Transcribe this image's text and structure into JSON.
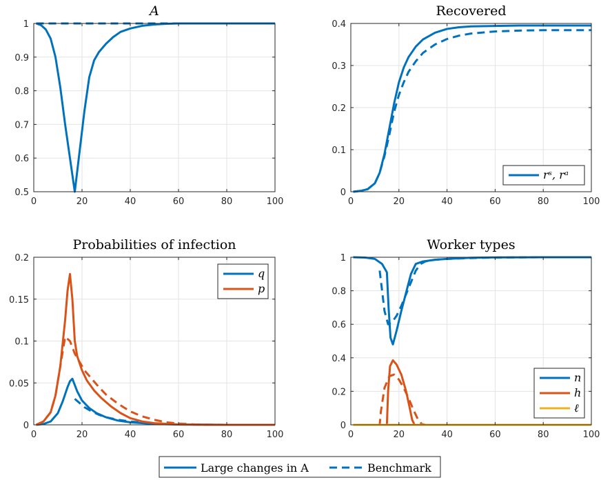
{
  "colors": {
    "blue": "#0072BD",
    "orange": "#D95319",
    "yellow": "#EDB120"
  },
  "bottom_legend": {
    "solid_label": "Large changes in A",
    "dashed_label": "Benchmark"
  },
  "chart_data": [
    {
      "id": "A",
      "type": "line",
      "title": "A",
      "title_italic": true,
      "xlim": [
        0,
        100
      ],
      "ylim": [
        0.5,
        1
      ],
      "xticks": [
        0,
        20,
        40,
        60,
        80,
        100
      ],
      "yticks": [
        0.5,
        0.6,
        0.7,
        0.8,
        0.9,
        1
      ],
      "ytick_labels": [
        "0.5",
        "0.6",
        "0.7",
        "0.8",
        "0.9",
        "1"
      ],
      "legend": [],
      "series": [
        {
          "style": "solid",
          "color": "#0072BD",
          "x": [
            1,
            3,
            5,
            7,
            9,
            11,
            13,
            15,
            17,
            19,
            21,
            23,
            25,
            27,
            30,
            33,
            36,
            40,
            45,
            50,
            55,
            60,
            70,
            80,
            90,
            100
          ],
          "y": [
            1.0,
            0.995,
            0.982,
            0.955,
            0.9,
            0.81,
            0.7,
            0.6,
            0.5,
            0.62,
            0.74,
            0.84,
            0.89,
            0.915,
            0.94,
            0.96,
            0.975,
            0.985,
            0.993,
            0.997,
            0.999,
            1.0,
            1.0,
            1.0,
            1.0,
            1.0
          ]
        },
        {
          "style": "dashed",
          "color": "#0072BD",
          "x": [
            1,
            100
          ],
          "y": [
            1.0,
            1.0
          ]
        }
      ]
    },
    {
      "id": "recovered",
      "type": "line",
      "title": "Recovered",
      "title_italic": false,
      "xlim": [
        0,
        100
      ],
      "ylim": [
        0,
        0.4
      ],
      "xticks": [
        0,
        20,
        40,
        60,
        80,
        100
      ],
      "yticks": [
        0,
        0.1,
        0.2,
        0.3,
        0.4
      ],
      "ytick_labels": [
        "0",
        "0.1",
        "0.2",
        "0.3",
        "0.4"
      ],
      "legend": [
        {
          "label": "rˢ, rᵃ",
          "color": "#0072BD",
          "style": "solid"
        }
      ],
      "legend_position": "bottom-right",
      "series": [
        {
          "style": "solid",
          "color": "#0072BD",
          "x": [
            1,
            4,
            7,
            10,
            12,
            14,
            16,
            18,
            20,
            22,
            24,
            27,
            30,
            35,
            40,
            45,
            50,
            60,
            70,
            80,
            90,
            100
          ],
          "y": [
            0.0,
            0.002,
            0.006,
            0.02,
            0.045,
            0.09,
            0.15,
            0.21,
            0.26,
            0.295,
            0.32,
            0.345,
            0.362,
            0.378,
            0.387,
            0.391,
            0.393,
            0.394,
            0.395,
            0.395,
            0.395,
            0.395
          ]
        },
        {
          "style": "dashed",
          "color": "#0072BD",
          "x": [
            1,
            4,
            7,
            10,
            12,
            14,
            16,
            18,
            20,
            22,
            24,
            27,
            30,
            35,
            40,
            45,
            50,
            60,
            70,
            80,
            90,
            100
          ],
          "y": [
            0.0,
            0.002,
            0.006,
            0.02,
            0.045,
            0.085,
            0.135,
            0.19,
            0.23,
            0.26,
            0.285,
            0.31,
            0.33,
            0.35,
            0.363,
            0.371,
            0.376,
            0.381,
            0.383,
            0.384,
            0.384,
            0.384
          ]
        }
      ]
    },
    {
      "id": "probabilities",
      "type": "line",
      "title": "Probabilities of infection",
      "title_italic": false,
      "xlim": [
        0,
        100
      ],
      "ylim": [
        0,
        0.2
      ],
      "xticks": [
        0,
        20,
        40,
        60,
        80,
        100
      ],
      "yticks": [
        0,
        0.05,
        0.1,
        0.15,
        0.2
      ],
      "ytick_labels": [
        "0",
        "0.05",
        "0.1",
        "0.15",
        "0.2"
      ],
      "legend": [
        {
          "label": "q",
          "color": "#0072BD",
          "style": "solid"
        },
        {
          "label": "p",
          "color": "#D95319",
          "style": "solid"
        }
      ],
      "legend_position": "top-right",
      "series": [
        {
          "style": "solid",
          "color": "#0072BD",
          "x": [
            1,
            4,
            7,
            10,
            12,
            14,
            15,
            16,
            18,
            20,
            23,
            26,
            30,
            35,
            40,
            50,
            60,
            80,
            100
          ],
          "y": [
            0.0,
            0.001,
            0.004,
            0.014,
            0.028,
            0.045,
            0.052,
            0.055,
            0.04,
            0.029,
            0.02,
            0.014,
            0.009,
            0.005,
            0.003,
            0.001,
            0.0004,
            0.0,
            0.0
          ]
        },
        {
          "style": "dashed",
          "color": "#0072BD",
          "x": [
            17,
            19,
            21,
            24,
            27,
            30,
            35,
            40,
            50,
            60,
            80,
            100
          ],
          "y": [
            0.031,
            0.026,
            0.021,
            0.016,
            0.012,
            0.009,
            0.006,
            0.004,
            0.0015,
            0.0005,
            0.0,
            0.0
          ]
        },
        {
          "style": "solid",
          "color": "#D95319",
          "x": [
            1,
            4,
            7,
            9,
            11,
            13,
            14,
            15,
            16,
            17,
            18,
            20,
            22,
            25,
            28,
            32,
            36,
            40,
            45,
            50,
            60,
            80,
            100
          ],
          "y": [
            0.0,
            0.004,
            0.015,
            0.035,
            0.07,
            0.125,
            0.16,
            0.18,
            0.15,
            0.1,
            0.082,
            0.065,
            0.053,
            0.041,
            0.032,
            0.022,
            0.014,
            0.008,
            0.004,
            0.002,
            0.0004,
            0.0,
            0.0
          ]
        },
        {
          "style": "dashed",
          "color": "#D95319",
          "x": [
            1,
            4,
            7,
            9,
            11,
            13,
            15,
            17,
            19,
            21,
            24,
            27,
            30,
            35,
            40,
            45,
            50,
            55,
            60,
            70,
            80,
            100
          ],
          "y": [
            0.0,
            0.004,
            0.015,
            0.035,
            0.07,
            0.105,
            0.1,
            0.085,
            0.075,
            0.065,
            0.055,
            0.045,
            0.036,
            0.025,
            0.016,
            0.01,
            0.006,
            0.003,
            0.0015,
            0.0,
            0.0,
            0.0
          ]
        }
      ]
    },
    {
      "id": "workers",
      "type": "line",
      "title": "Worker types",
      "title_italic": false,
      "xlim": [
        0,
        100
      ],
      "ylim": [
        0,
        1
      ],
      "xticks": [
        0,
        20,
        40,
        60,
        80,
        100
      ],
      "yticks": [
        0,
        0.2,
        0.4,
        0.6,
        0.8,
        1
      ],
      "ytick_labels": [
        "0",
        "0.2",
        "0.4",
        "0.6",
        "0.8",
        "1"
      ],
      "legend": [
        {
          "label": "n",
          "color": "#0072BD",
          "style": "solid"
        },
        {
          "label": "h",
          "color": "#D95319",
          "style": "solid"
        },
        {
          "label": "ℓ",
          "color": "#EDB120",
          "style": "solid"
        }
      ],
      "legend_position": "bottom-right",
      "series": [
        {
          "style": "solid",
          "color": "#0072BD",
          "x": [
            1,
            6,
            10,
            13,
            15,
            15.7,
            16.5,
            17.5,
            19,
            21,
            23,
            25,
            27,
            30,
            35,
            40,
            50,
            60,
            80,
            100
          ],
          "y": [
            1.0,
            0.998,
            0.99,
            0.96,
            0.91,
            0.7,
            0.52,
            0.48,
            0.56,
            0.68,
            0.79,
            0.9,
            0.96,
            0.975,
            0.985,
            0.99,
            0.997,
            0.999,
            1.0,
            1.0
          ]
        },
        {
          "style": "dashed",
          "color": "#0072BD",
          "x": [
            12,
            12.5,
            14,
            15.5,
            17,
            19,
            21,
            23,
            25,
            27,
            29,
            31,
            35,
            40,
            50,
            60,
            80,
            100
          ],
          "y": [
            0.92,
            0.86,
            0.68,
            0.6,
            0.61,
            0.65,
            0.71,
            0.78,
            0.85,
            0.92,
            0.96,
            0.975,
            0.985,
            0.99,
            0.995,
            0.998,
            1.0,
            1.0
          ]
        },
        {
          "style": "solid",
          "color": "#D95319",
          "x": [
            1,
            15,
            15.5,
            16.3,
            17.5,
            19,
            21,
            23,
            24.5,
            25.5,
            26.5,
            28,
            40,
            60,
            80,
            100
          ],
          "y": [
            0.0,
            0.0,
            0.2,
            0.35,
            0.385,
            0.36,
            0.3,
            0.2,
            0.1,
            0.03,
            0.0,
            0.0,
            0.0,
            0.0,
            0.0,
            0.0
          ]
        },
        {
          "style": "dashed",
          "color": "#D95319",
          "x": [
            1,
            12,
            12.5,
            14,
            16,
            18,
            20,
            22,
            24,
            26,
            28,
            29.5,
            31,
            40,
            60,
            80,
            100
          ],
          "y": [
            0.0,
            0.0,
            0.08,
            0.22,
            0.29,
            0.3,
            0.27,
            0.22,
            0.16,
            0.09,
            0.03,
            0.005,
            0.0,
            0.0,
            0.0,
            0.0,
            0.0
          ]
        },
        {
          "style": "solid",
          "color": "#EDB120",
          "x": [
            1,
            100
          ],
          "y": [
            0.0,
            0.0
          ]
        }
      ]
    }
  ]
}
